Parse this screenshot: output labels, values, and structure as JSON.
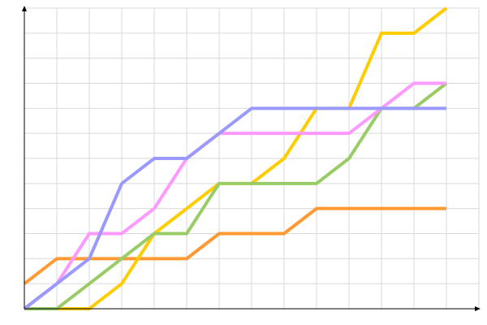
{
  "chart_data": {
    "type": "line",
    "title": "",
    "xlabel": "",
    "ylabel": "",
    "x": [
      0,
      1,
      2,
      3,
      4,
      5,
      6,
      7,
      8,
      9,
      10,
      11,
      12,
      13
    ],
    "xlim": [
      0,
      14
    ],
    "ylim": [
      0,
      12
    ],
    "grid": true,
    "legend": "none",
    "series": [
      {
        "color": "#ff9933",
        "values": [
          1,
          2,
          2,
          2,
          2,
          2,
          3,
          3,
          3,
          4,
          4,
          4,
          4,
          4
        ]
      },
      {
        "color": "#ffcc00",
        "values": [
          0,
          0,
          0,
          1,
          3,
          4,
          5,
          5,
          6,
          8,
          8,
          11,
          11,
          12
        ]
      },
      {
        "color": "#99cc66",
        "values": [
          0,
          0,
          1,
          2,
          3,
          3,
          5,
          5,
          5,
          5,
          6,
          8,
          8,
          9
        ]
      },
      {
        "color": "#ff99ff",
        "values": [
          0,
          1,
          3,
          3,
          4,
          6,
          7,
          7,
          7,
          7,
          7,
          8,
          9,
          9
        ]
      },
      {
        "color": "#9999ff",
        "values": [
          0,
          1,
          2,
          5,
          6,
          6,
          7,
          8,
          8,
          8,
          8,
          8,
          8,
          8
        ]
      }
    ]
  }
}
